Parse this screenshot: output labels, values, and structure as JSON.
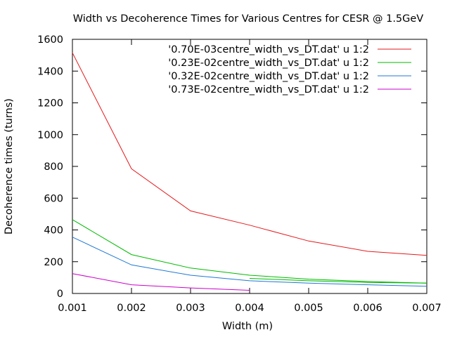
{
  "chart_data": {
    "type": "line",
    "title": "Width vs Decoherence Times for Various Centres for CESR @ 1.5GeV",
    "xlabel": "Width (m)",
    "ylabel": "Decoherence times (turns)",
    "xlim": [
      0.001,
      0.007
    ],
    "ylim": [
      0,
      1600
    ],
    "xticks": [
      0.001,
      0.002,
      0.003,
      0.004,
      0.005,
      0.006,
      0.007
    ],
    "xtick_labels": [
      "0.001",
      "0.002",
      "0.003",
      "0.004",
      "0.005",
      "0.006",
      "0.007"
    ],
    "yticks": [
      0,
      200,
      400,
      600,
      800,
      1000,
      1200,
      1400,
      1600
    ],
    "ytick_labels": [
      "0",
      "200",
      "400",
      "600",
      "800",
      "1000",
      "1200",
      "1400",
      "1600"
    ],
    "grid": false,
    "legend_position": "top-right",
    "series": [
      {
        "name": "'0.70E-03centre_width_vs_DT.dat' u 1:2",
        "color": "#e41a1c",
        "points": [
          [
            0.001,
            1515
          ],
          [
            0.002,
            785
          ],
          [
            0.003,
            520
          ],
          [
            0.004,
            430
          ],
          [
            0.005,
            330
          ],
          [
            0.006,
            265
          ],
          [
            0.007,
            240
          ]
        ]
      },
      {
        "name": "'0.23E-02centre_width_vs_DT.dat' u 1:2",
        "color": "#00bb00",
        "points": [
          [
            0.001,
            465
          ],
          [
            0.002,
            245
          ],
          [
            0.003,
            160
          ],
          [
            0.004,
            115
          ],
          [
            0.005,
            90
          ],
          [
            0.006,
            75
          ],
          [
            0.007,
            65
          ]
        ]
      },
      {
        "name": "'0.32E-02centre_width_vs_DT.dat' u 1:2",
        "color": "#1f78d4",
        "points": [
          [
            0.001,
            355
          ],
          [
            0.002,
            180
          ],
          [
            0.003,
            115
          ],
          [
            0.004,
            80
          ],
          [
            0.005,
            65
          ],
          [
            0.006,
            55
          ],
          [
            0.007,
            45
          ]
        ]
      },
      {
        "name": "'0.73E-02centre_width_vs_DT.dat' u 1:2",
        "color": "#cc00cc",
        "points": [
          [
            0.001,
            125
          ],
          [
            0.002,
            55
          ],
          [
            0.003,
            35
          ],
          [
            0.004,
            20
          ]
        ]
      }
    ],
    "extra_segment": {
      "color": "#00bb00",
      "points": [
        [
          0.004,
          95
        ],
        [
          0.005,
          80
        ],
        [
          0.006,
          70
        ],
        [
          0.007,
          65
        ]
      ]
    }
  }
}
